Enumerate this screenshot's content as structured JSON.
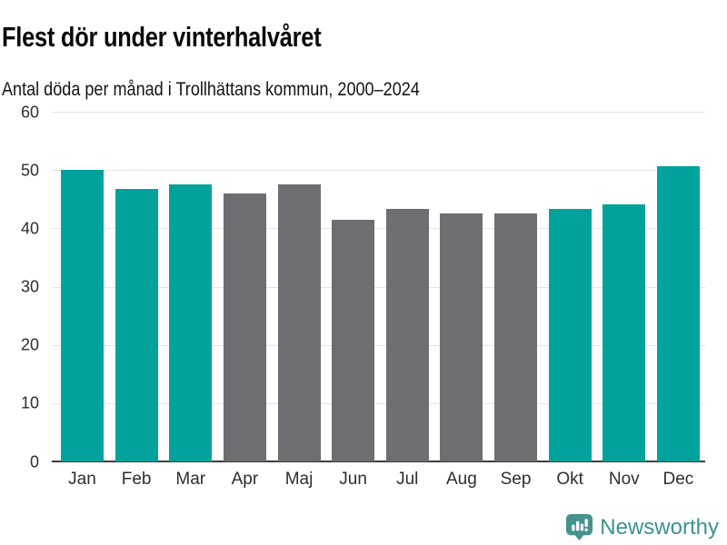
{
  "header": {
    "title": "Flest dör under vinterhalvåret",
    "subtitle": "Antal döda per månad i Trollhättans kommun, 2000–2024"
  },
  "chart_data": {
    "type": "bar",
    "title": "Flest dör under vinterhalvåret",
    "subtitle": "Antal döda per månad i Trollhättans kommun, 2000–2024",
    "categories": [
      "Jan",
      "Feb",
      "Mar",
      "Apr",
      "Maj",
      "Jun",
      "Jul",
      "Aug",
      "Sep",
      "Okt",
      "Nov",
      "Dec"
    ],
    "values": [
      50.1,
      46.8,
      47.6,
      46.0,
      47.6,
      41.5,
      43.4,
      42.5,
      42.5,
      43.3,
      44.1,
      50.7
    ],
    "bar_roles": [
      "highlight",
      "highlight",
      "highlight",
      "base",
      "base",
      "base",
      "base",
      "base",
      "base",
      "highlight",
      "highlight",
      "highlight"
    ],
    "colors": {
      "highlight": "#00a29b",
      "base": "#6d6d72"
    },
    "xlabel": "",
    "ylabel": "",
    "ylim": [
      0,
      60
    ],
    "yticks": [
      60,
      50,
      40,
      30,
      20,
      10,
      0
    ],
    "grid": "horizontal",
    "gridline_color": "#e4e4e4",
    "axis_color": "#3d3d3d",
    "legend": "none"
  },
  "footer": {
    "brand": "Newsworthy",
    "brand_color": "#3a948e",
    "logo_icon": "newsworthy-speech-bubble-bar-chart-icon"
  }
}
